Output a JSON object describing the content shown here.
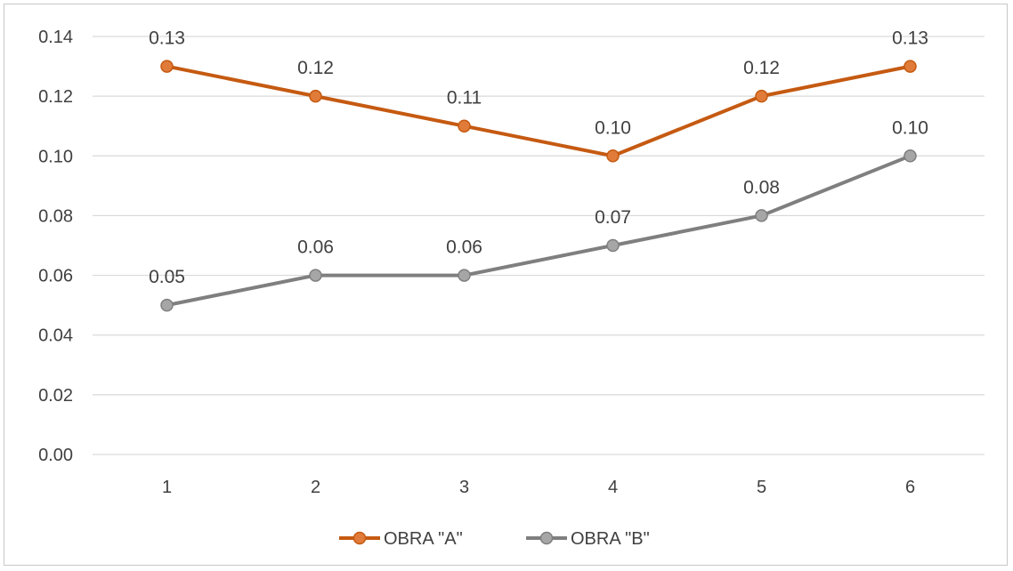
{
  "chart_data": {
    "type": "line",
    "title": "",
    "xlabel": "",
    "ylabel": "",
    "x": [
      "1",
      "2",
      "3",
      "4",
      "5",
      "6"
    ],
    "ylim": [
      0,
      0.14
    ],
    "yticks": [
      "0.00",
      "0.02",
      "0.04",
      "0.06",
      "0.08",
      "0.10",
      "0.12",
      "0.14"
    ],
    "grid": true,
    "legend_position": "bottom",
    "series": [
      {
        "name": "OBRA \"A\"",
        "values": [
          0.13,
          0.12,
          0.11,
          0.1,
          0.12,
          0.13
        ],
        "labels": [
          "0.13",
          "0.12",
          "0.11",
          "0.10",
          "0.12",
          "0.13"
        ],
        "color": "#C55A11"
      },
      {
        "name": "OBRA \"B\"",
        "values": [
          0.05,
          0.06,
          0.06,
          0.07,
          0.08,
          0.1
        ],
        "labels": [
          "0.05",
          "0.06",
          "0.06",
          "0.07",
          "0.08",
          "0.10"
        ],
        "color": "#7F7F7F"
      }
    ]
  }
}
